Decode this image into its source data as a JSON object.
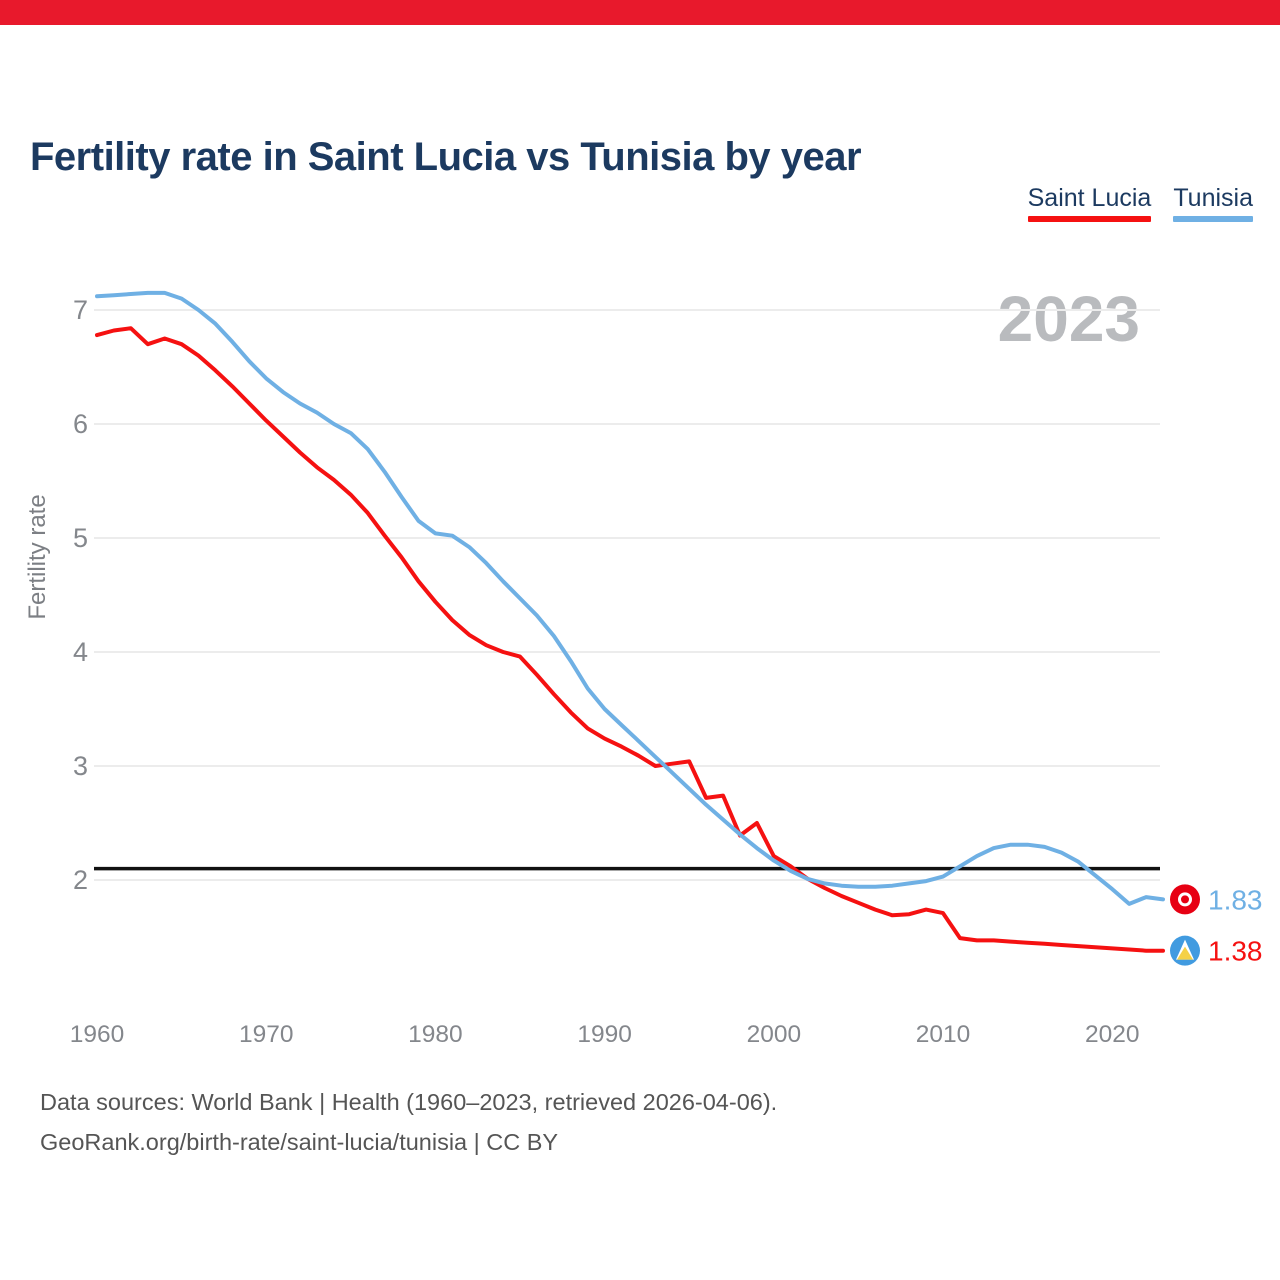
{
  "page": {
    "accent_bar_color": "#e8192c",
    "background": "#ffffff"
  },
  "header": {
    "title": "Fertility rate in Saint Lucia vs Tunisia by year"
  },
  "legend": [
    {
      "label": "Saint Lucia",
      "color": "#f51111"
    },
    {
      "label": "Tunisia",
      "color": "#6fb0e4"
    }
  ],
  "watermark": "2023",
  "chart_data": {
    "type": "line",
    "title": "Fertility rate in Saint Lucia vs Tunisia by year",
    "xlabel": "",
    "ylabel": "Fertility rate",
    "ylim": [
      1.2,
      7.3
    ],
    "grid": "horizontal-only",
    "legend_position": "top-right",
    "yticks": [
      7,
      6,
      5,
      4,
      3,
      2
    ],
    "xticks": [
      1960,
      1970,
      1980,
      1990,
      2000,
      2010,
      2020
    ],
    "x": [
      1960,
      1961,
      1962,
      1963,
      1964,
      1965,
      1966,
      1967,
      1968,
      1969,
      1970,
      1971,
      1972,
      1973,
      1974,
      1975,
      1976,
      1977,
      1978,
      1979,
      1980,
      1981,
      1982,
      1983,
      1984,
      1985,
      1986,
      1987,
      1988,
      1989,
      1990,
      1991,
      1992,
      1993,
      1994,
      1995,
      1996,
      1997,
      1998,
      1999,
      2000,
      2001,
      2002,
      2003,
      2004,
      2005,
      2006,
      2007,
      2008,
      2009,
      2010,
      2011,
      2012,
      2013,
      2014,
      2015,
      2016,
      2017,
      2018,
      2019,
      2020,
      2021,
      2022,
      2023
    ],
    "series": [
      {
        "name": "Saint Lucia",
        "color": "#f51111",
        "values": [
          6.78,
          6.82,
          6.84,
          6.7,
          6.75,
          6.7,
          6.6,
          6.47,
          6.33,
          6.18,
          6.03,
          5.89,
          5.75,
          5.62,
          5.51,
          5.38,
          5.22,
          5.02,
          4.83,
          4.62,
          4.44,
          4.28,
          4.15,
          4.06,
          4.0,
          3.96,
          3.8,
          3.63,
          3.47,
          3.33,
          3.24,
          3.17,
          3.09,
          3.0,
          3.02,
          3.04,
          2.72,
          2.74,
          2.39,
          2.5,
          2.21,
          2.12,
          2.01,
          1.93,
          1.86,
          1.8,
          1.74,
          1.69,
          1.7,
          1.74,
          1.71,
          1.49,
          1.47,
          1.47,
          1.46,
          1.45,
          1.44,
          1.43,
          1.42,
          1.41,
          1.4,
          1.39,
          1.38,
          1.38
        ]
      },
      {
        "name": "Tunisia",
        "color": "#6fb0e4",
        "values": [
          7.12,
          7.13,
          7.14,
          7.15,
          7.15,
          7.1,
          7.0,
          6.88,
          6.72,
          6.55,
          6.4,
          6.28,
          6.18,
          6.1,
          6.0,
          5.92,
          5.78,
          5.58,
          5.36,
          5.15,
          5.04,
          5.02,
          4.92,
          4.78,
          4.62,
          4.47,
          4.32,
          4.14,
          3.92,
          3.68,
          3.5,
          3.36,
          3.22,
          3.08,
          2.94,
          2.8,
          2.66,
          2.53,
          2.4,
          2.28,
          2.17,
          2.08,
          2.01,
          1.97,
          1.95,
          1.94,
          1.94,
          1.95,
          1.97,
          1.99,
          2.03,
          2.12,
          2.21,
          2.28,
          2.31,
          2.31,
          2.29,
          2.24,
          2.16,
          2.04,
          1.92,
          1.79,
          1.85,
          1.83
        ]
      }
    ],
    "reference_line": {
      "value": 2.1,
      "color": "#111111"
    },
    "end_labels": [
      {
        "series": "Tunisia",
        "value": 1.83,
        "text": "1.83",
        "color": "#6fb0e4",
        "flag": "tunisia"
      },
      {
        "series": "Saint Lucia",
        "value": 1.38,
        "text": "1.38",
        "color": "#f51111",
        "flag": "saint-lucia"
      }
    ]
  },
  "footer": {
    "line1": "Data sources: World Bank | Health (1960–2023, retrieved 2026-04-06).",
    "line2": "GeoRank.org/birth-rate/saint-lucia/tunisia | CC BY"
  }
}
